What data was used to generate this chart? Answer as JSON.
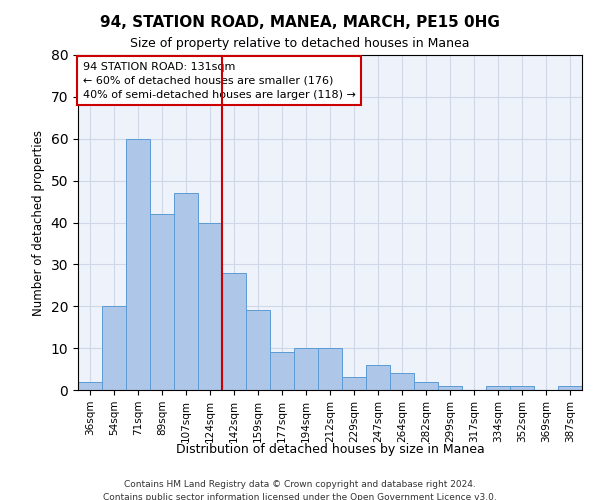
{
  "title": "94, STATION ROAD, MANEA, MARCH, PE15 0HG",
  "subtitle": "Size of property relative to detached houses in Manea",
  "xlabel": "Distribution of detached houses by size in Manea",
  "ylabel": "Number of detached properties",
  "bar_labels": [
    "36sqm",
    "54sqm",
    "71sqm",
    "89sqm",
    "107sqm",
    "124sqm",
    "142sqm",
    "159sqm",
    "177sqm",
    "194sqm",
    "212sqm",
    "229sqm",
    "247sqm",
    "264sqm",
    "282sqm",
    "299sqm",
    "317sqm",
    "334sqm",
    "352sqm",
    "369sqm",
    "387sqm"
  ],
  "bar_values": [
    2,
    20,
    60,
    42,
    47,
    40,
    28,
    19,
    9,
    10,
    10,
    3,
    6,
    4,
    2,
    1,
    0,
    1,
    1,
    0,
    1
  ],
  "bar_color": "#aec6e8",
  "bar_edge_color": "#5b9bd5",
  "vline_x": 5.5,
  "vline_color": "#cc0000",
  "ylim": [
    0,
    80
  ],
  "yticks": [
    0,
    10,
    20,
    30,
    40,
    50,
    60,
    70,
    80
  ],
  "annotation_title": "94 STATION ROAD: 131sqm",
  "annotation_line1": "← 60% of detached houses are smaller (176)",
  "annotation_line2": "40% of semi-detached houses are larger (118) →",
  "annotation_box_color": "#ffffff",
  "annotation_box_edge": "#cc0000",
  "footer1": "Contains HM Land Registry data © Crown copyright and database right 2024.",
  "footer2": "Contains public sector information licensed under the Open Government Licence v3.0.",
  "grid_color": "#d0d8e8",
  "background_color": "#eef2fb"
}
